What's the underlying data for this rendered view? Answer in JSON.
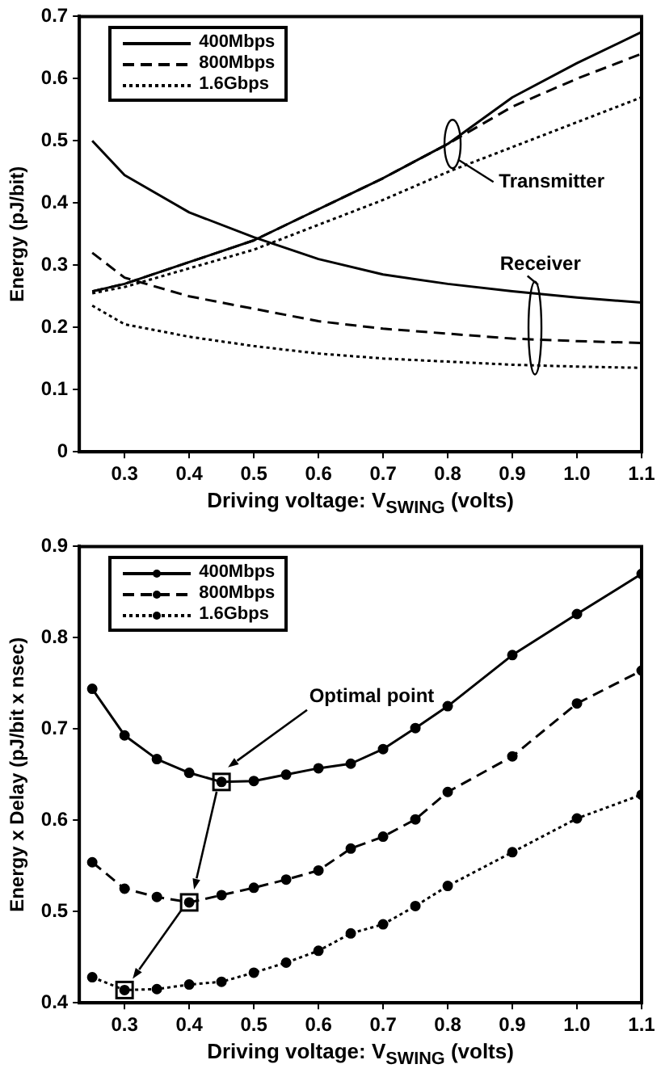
{
  "chart_data": [
    {
      "type": "line",
      "xlabel": "Driving voltage: V$_{SWING}$ (volts)",
      "ylabel": "Energy (pJ/bit)",
      "x": [
        0.25,
        0.3,
        0.4,
        0.5,
        0.6,
        0.7,
        0.8,
        0.9,
        1.0,
        1.1
      ],
      "xlim": [
        0.23,
        1.1
      ],
      "xticks": [
        0.3,
        0.4,
        0.5,
        0.6,
        0.7,
        0.8,
        0.9,
        {
          "value": 1.0,
          "label": "1.0"
        },
        1.1
      ],
      "ylim": [
        0,
        0.7
      ],
      "yticks": [
        0,
        0.1,
        0.2,
        0.3,
        0.4,
        0.5,
        0.6,
        0.7
      ],
      "grid": false,
      "legend": "top left",
      "marker": "none",
      "series": [
        {
          "name": "400Mbps",
          "color": "#000000",
          "line_style": "solid",
          "values": [
            0.258,
            0.27,
            0.305,
            0.34,
            0.39,
            0.44,
            0.495,
            0.57,
            0.625,
            0.675
          ]
        },
        {
          "name": "800Mbps",
          "color": "#000000",
          "line_style": "dashed",
          "values": [
            0.258,
            0.27,
            0.305,
            0.34,
            0.39,
            0.44,
            0.495,
            0.555,
            0.6,
            0.64
          ]
        },
        {
          "name": "1.6Gbps",
          "color": "#000000",
          "line_style": "dotted",
          "values": [
            0.255,
            0.265,
            0.295,
            0.325,
            0.365,
            0.405,
            0.45,
            0.49,
            0.53,
            0.57
          ]
        },
        {
          "color": "#000000",
          "line_style": "solid",
          "values": [
            0.5,
            0.445,
            0.385,
            0.345,
            0.31,
            0.285,
            0.27,
            0.258,
            0.248,
            0.24
          ]
        },
        {
          "color": "#000000",
          "line_style": "dashed",
          "values": [
            0.32,
            0.28,
            0.25,
            0.23,
            0.21,
            0.198,
            0.19,
            0.182,
            0.178,
            0.175
          ]
        },
        {
          "color": "#000000",
          "line_style": "dotted",
          "values": [
            0.235,
            0.205,
            0.185,
            0.17,
            0.158,
            0.15,
            0.145,
            0.14,
            0.137,
            0.135
          ]
        }
      ],
      "annotations": [
        "Transmitter",
        "Receiver"
      ]
    },
    {
      "type": "line",
      "xlabel": "Driving voltage: V$_{SWING}$ (volts)",
      "ylabel": "Energy x Delay (pJ/bit x nsec)",
      "x": [
        0.25,
        0.3,
        0.35,
        0.4,
        0.45,
        0.5,
        0.55,
        0.6,
        0.65,
        0.7,
        0.75,
        0.8,
        0.9,
        1.0,
        1.1
      ],
      "xlim": [
        0.23,
        1.1
      ],
      "xticks": [
        0.3,
        0.4,
        0.5,
        0.6,
        0.7,
        0.8,
        0.9,
        {
          "value": 1.0,
          "label": "1.0"
        },
        1.1
      ],
      "ylim": [
        0.4,
        0.9
      ],
      "yticks": [
        0.4,
        0.5,
        0.6,
        0.7,
        0.8,
        0.9
      ],
      "grid": false,
      "legend": "top left",
      "marker": "circle",
      "series": [
        {
          "name": "400Mbps",
          "color": "#000000",
          "line_style": "solid",
          "values": [
            0.744,
            0.693,
            0.667,
            0.652,
            0.642,
            0.643,
            0.65,
            0.657,
            0.662,
            0.678,
            0.701,
            0.725,
            0.781,
            0.826,
            0.87
          ]
        },
        {
          "name": "800Mbps",
          "color": "#000000",
          "line_style": "dashed",
          "values": [
            0.554,
            0.525,
            0.516,
            0.51,
            0.518,
            0.526,
            0.535,
            0.545,
            0.569,
            0.582,
            0.601,
            0.631,
            0.67,
            0.728,
            0.764
          ]
        },
        {
          "name": "1.6Gbps",
          "color": "#000000",
          "line_style": "dotted",
          "values": [
            0.428,
            0.414,
            0.415,
            0.42,
            0.423,
            0.433,
            0.444,
            0.457,
            0.476,
            0.486,
            0.506,
            0.528,
            0.565,
            0.602,
            0.628
          ]
        }
      ],
      "annotations": [
        "Optimal point"
      ]
    }
  ]
}
